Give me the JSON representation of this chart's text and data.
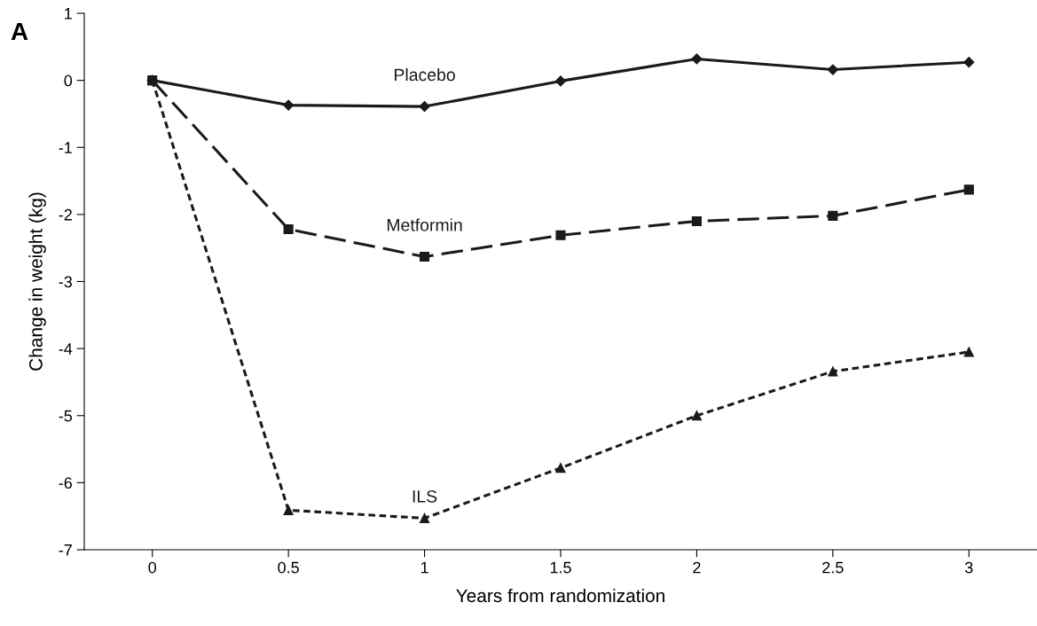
{
  "chart_data": {
    "type": "line",
    "xlabel": "Years from randomization",
    "ylabel": "Change in weight (kg)",
    "x": [
      0,
      0.5,
      1,
      1.5,
      2,
      2.5,
      3
    ],
    "series": [
      {
        "name": "Placebo",
        "color": "#1a1a1a",
        "marker": "diamond",
        "line_style": "solid",
        "values": [
          0,
          -0.37,
          -0.39,
          -0.01,
          0.32,
          0.16,
          0.27
        ]
      },
      {
        "name": "Metformin",
        "color": "#1a1a1a",
        "marker": "square",
        "line_style": "dashed",
        "values": [
          0,
          -2.22,
          -2.63,
          -2.31,
          -2.1,
          -2.02,
          -1.63
        ]
      },
      {
        "name": "ILS",
        "color": "#1a1a1a",
        "marker": "triangle",
        "line_style": "dotted",
        "values": [
          0,
          -6.41,
          -6.53,
          -5.78,
          -5.0,
          -4.34,
          -4.05
        ]
      }
    ],
    "xlim": [
      -0.25,
      3.25
    ],
    "xticks": [
      0,
      0.5,
      1,
      1.5,
      2,
      2.5,
      3
    ],
    "ylim": [
      -7,
      1
    ],
    "yticks": [
      -7,
      -6,
      -5,
      -4,
      -3,
      -2,
      -1,
      0,
      1
    ],
    "grid": false,
    "legend": false,
    "annotations": [
      "A"
    ]
  }
}
